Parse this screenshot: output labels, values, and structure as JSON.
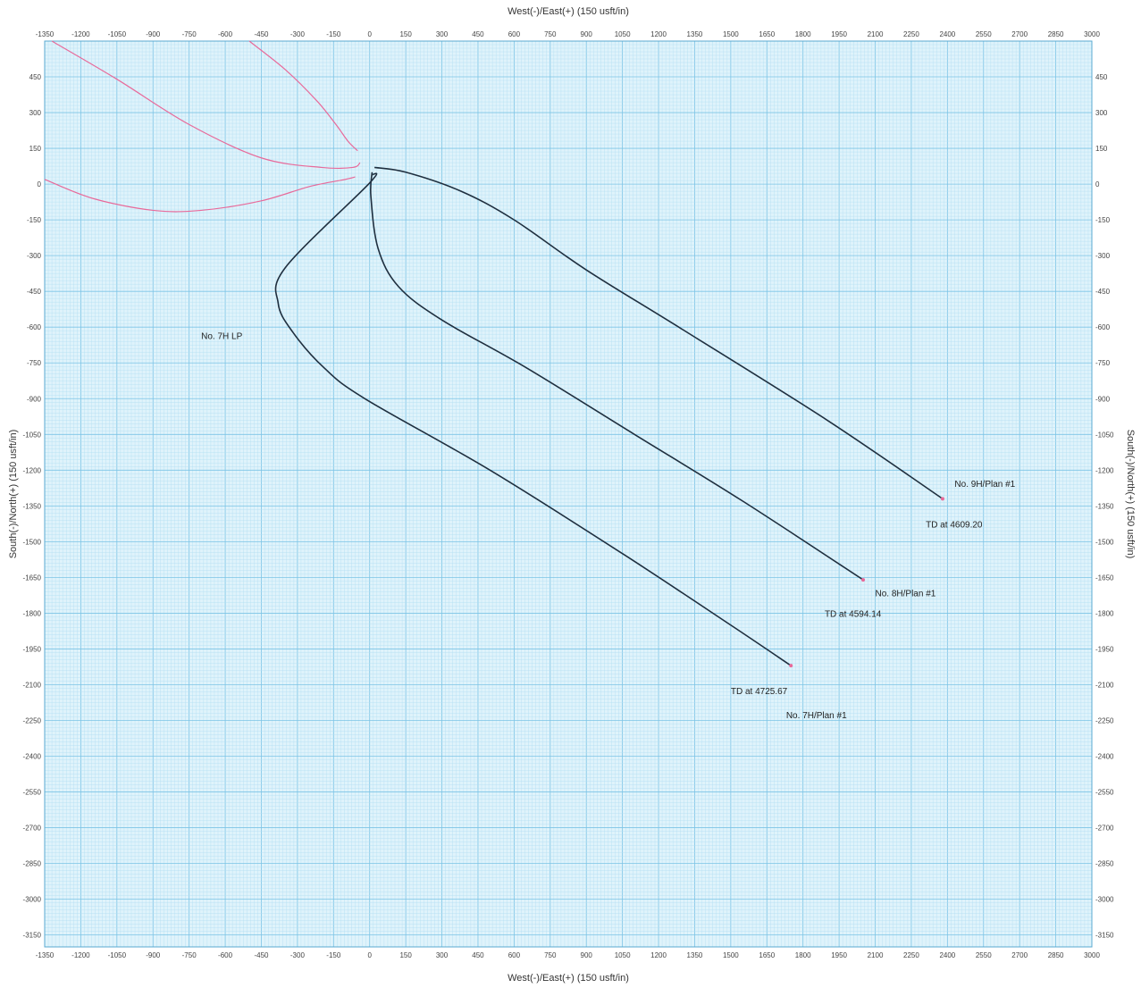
{
  "chart_data": {
    "type": "line",
    "x_axis": {
      "label": "West(-)/East(+) (150 usft/in)",
      "range": [
        -1350,
        3000
      ],
      "ticks": [
        -1350,
        -1200,
        -1050,
        -900,
        -750,
        -600,
        -450,
        -300,
        -150,
        0,
        150,
        300,
        450,
        600,
        750,
        900,
        1050,
        1200,
        1350,
        1500,
        1650,
        1800,
        1950,
        2100,
        2250,
        2400,
        2550,
        2700,
        2850,
        3000
      ]
    },
    "y_axis": {
      "label": "South(-)/North(+) (150 usft/in)",
      "range": [
        -3200,
        600
      ],
      "ticks": [
        450,
        300,
        150,
        0,
        -150,
        -300,
        -450,
        -600,
        -750,
        -900,
        -1050,
        -1200,
        -1350,
        -1500,
        -1650,
        -1800,
        -1950,
        -2100,
        -2250,
        -2400,
        -2550,
        -2700,
        -2850,
        -3000,
        -3150
      ]
    },
    "grid": true,
    "colors": {
      "background": "#dff3fb",
      "grid_minor": "#b3def2",
      "grid_major": "#7cc4e6",
      "planned": "#1f2f3f",
      "offset": "#e86a9a"
    },
    "series": [
      {
        "name": "No. 7H/Plan #1",
        "color": "#1f2f3f",
        "x": [
          10,
          0,
          -350,
          -380,
          -320,
          -190,
          -20,
          500,
          1050,
          1500,
          1750
        ],
        "y": [
          40,
          5,
          -350,
          -500,
          -620,
          -770,
          -900,
          -1200,
          -1550,
          -1850,
          -2020
        ]
      },
      {
        "name": "No. 8H/Plan #1",
        "color": "#1f2f3f",
        "x": [
          10,
          5,
          35,
          120,
          300,
          650,
          1100,
          1550,
          2050
        ],
        "y": [
          50,
          -50,
          -270,
          -430,
          -570,
          -770,
          -1050,
          -1330,
          -1660
        ]
      },
      {
        "name": "No. 9H/Plan #1",
        "color": "#1f2f3f",
        "x": [
          20,
          150,
          380,
          600,
          900,
          1300,
          1900,
          2380
        ],
        "y": [
          70,
          50,
          -30,
          -150,
          -360,
          -610,
          -990,
          -1320
        ]
      },
      {
        "name": "",
        "color": "#e86a9a",
        "x": [
          -1320,
          -1050,
          -750,
          -450,
          -200,
          -70,
          -40
        ],
        "y": [
          600,
          440,
          250,
          110,
          70,
          70,
          90
        ]
      },
      {
        "name": "",
        "color": "#e86a9a",
        "x": [
          -500,
          -350,
          -220,
          -140,
          -90,
          -50
        ],
        "y": [
          600,
          480,
          350,
          250,
          180,
          140
        ]
      },
      {
        "name": "",
        "color": "#e86a9a",
        "x": [
          -1350,
          -1150,
          -900,
          -700,
          -450,
          -250,
          -100,
          -60
        ],
        "y": [
          20,
          -60,
          -110,
          -110,
          -70,
          -10,
          20,
          30
        ]
      }
    ],
    "annotations": [
      {
        "text": "No. 9H/Plan #1",
        "x": 2430,
        "y": -1270
      },
      {
        "text": "TD at 4609.20",
        "x": 2310,
        "y": -1440
      },
      {
        "text": "No. 8H/Plan #1",
        "x": 2100,
        "y": -1730
      },
      {
        "text": "TD at 4594.14",
        "x": 1890,
        "y": -1815
      },
      {
        "text": "TD at 4725.67",
        "x": 1500,
        "y": -2140
      },
      {
        "text": "No. 7H/Plan #1",
        "x": 1730,
        "y": -2240
      },
      {
        "text": "No. 7H LP",
        "x": -700,
        "y": -650
      }
    ]
  }
}
